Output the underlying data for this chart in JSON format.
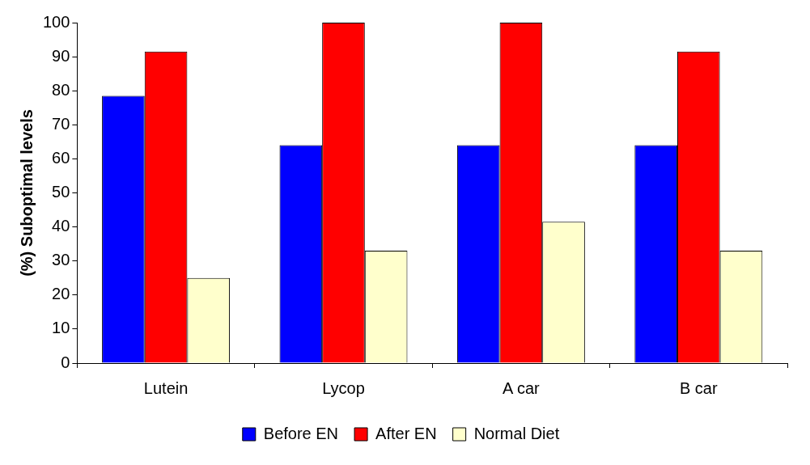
{
  "chart_data": {
    "type": "bar",
    "ylabel": "(%) Suboptimal levels",
    "categories": [
      "Lutein",
      "Lycop",
      "A car",
      "B car"
    ],
    "series": [
      {
        "name": "Before EN",
        "color": "#0000ff",
        "values": [
          78.5,
          64,
          64,
          64
        ]
      },
      {
        "name": "After EN",
        "color": "#ff0000",
        "values": [
          91.5,
          100,
          100,
          91.5
        ]
      },
      {
        "name": "Normal Diet",
        "color": "#ffffcc",
        "values": [
          25,
          33,
          41.5,
          33
        ]
      }
    ],
    "ylim": [
      0,
      100
    ],
    "yticks": [
      0,
      10,
      20,
      30,
      40,
      50,
      60,
      70,
      80,
      90,
      100
    ],
    "grid": false,
    "legend": "bottom"
  }
}
